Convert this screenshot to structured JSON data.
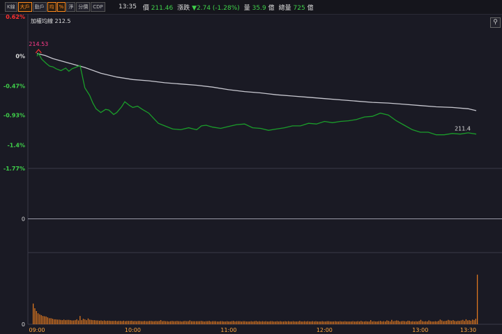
{
  "toolbar": {
    "tabs": [
      {
        "label": "K線",
        "active": false
      },
      {
        "label": "大戶",
        "active": true
      },
      {
        "label": "動戶",
        "active": false
      },
      {
        "label": "均",
        "active": true
      },
      {
        "label": "%",
        "active": true
      },
      {
        "label": "淨",
        "active": false
      },
      {
        "label": "分價",
        "active": false
      },
      {
        "label": "CDP",
        "active": false
      }
    ]
  },
  "quote": {
    "time": "13:35",
    "price_label": "價",
    "price": "211.46",
    "change_label": "漲跌",
    "change": "▼2.74 (-1.28%)",
    "vol_label": "量",
    "vol": "35.9",
    "vol_unit": "億",
    "total_label": "總量",
    "total": "725",
    "total_unit": "億"
  },
  "icons": {
    "link": "link-icon"
  },
  "colors": {
    "background": "#1a1a24",
    "price_line": "#1a9d2a",
    "avg_line": "#c8c8d0",
    "volume": "#e07820",
    "up": "#ff3030",
    "down": "#3fd14a",
    "high_marker": "#ff3c8a"
  },
  "chart_data": [
    {
      "type": "line",
      "avg_label": "加權均線 212.5",
      "yticks": [
        "0.62%",
        "0%",
        "-0.47%",
        "-0.93%",
        "-1.4%",
        "-1.77%"
      ],
      "ytick_values": [
        0.62,
        0,
        -0.47,
        -0.93,
        -1.4,
        -1.77
      ],
      "ylim": [
        -1.77,
        0.62
      ],
      "xlim": [
        0,
        280
      ],
      "xticks": [
        "09:00",
        "10:00",
        "11:00",
        "12:00",
        "13:00",
        "13:30"
      ],
      "xtick_values": [
        0,
        60,
        120,
        180,
        240,
        270
      ],
      "high_label": "214.53",
      "high_x": 1,
      "high_y": 0.07,
      "last_label": "211.4",
      "last_x": 270,
      "series": [
        {
          "role": "price",
          "values_x": [
            0,
            1,
            3,
            6,
            8,
            10,
            12,
            15,
            18,
            20,
            22,
            24,
            27,
            30,
            33,
            35,
            37,
            40,
            43,
            45,
            48,
            50,
            53,
            55,
            58,
            60,
            63,
            66,
            70,
            73,
            76,
            80,
            85,
            90,
            95,
            98,
            100,
            103,
            106,
            110,
            115,
            120,
            125,
            130,
            135,
            140,
            145,
            150,
            155,
            160,
            165,
            170,
            175,
            180,
            185,
            190,
            195,
            200,
            205,
            210,
            215,
            220,
            225,
            230,
            235,
            240,
            245,
            250,
            255,
            260,
            265,
            270,
            275
          ],
          "values_y": [
            0,
            0.04,
            -0.05,
            -0.12,
            -0.16,
            -0.17,
            -0.2,
            -0.23,
            -0.19,
            -0.24,
            -0.2,
            -0.18,
            -0.15,
            -0.5,
            -0.62,
            -0.74,
            -0.83,
            -0.89,
            -0.84,
            -0.85,
            -0.92,
            -0.89,
            -0.8,
            -0.72,
            -0.78,
            -0.81,
            -0.79,
            -0.84,
            -0.9,
            -0.98,
            -1.06,
            -1.1,
            -1.15,
            -1.16,
            -1.13,
            -1.15,
            -1.16,
            -1.1,
            -1.09,
            -1.12,
            -1.14,
            -1.11,
            -1.08,
            -1.07,
            -1.13,
            -1.14,
            -1.17,
            -1.15,
            -1.13,
            -1.1,
            -1.1,
            -1.06,
            -1.07,
            -1.03,
            -1.05,
            -1.03,
            -1.02,
            -1.0,
            -0.96,
            -0.95,
            -0.9,
            -0.93,
            -1.02,
            -1.09,
            -1.16,
            -1.2,
            -1.2,
            -1.24,
            -1.24,
            -1.22,
            -1.23,
            -1.21,
            -1.23
          ]
        },
        {
          "role": "avg",
          "values_x": [
            0,
            5,
            10,
            20,
            30,
            40,
            50,
            60,
            70,
            80,
            90,
            100,
            110,
            120,
            130,
            140,
            150,
            160,
            170,
            180,
            190,
            200,
            210,
            220,
            230,
            240,
            250,
            260,
            270,
            275
          ],
          "values_y": [
            0.04,
            0.01,
            -0.04,
            -0.11,
            -0.18,
            -0.27,
            -0.33,
            -0.37,
            -0.39,
            -0.42,
            -0.44,
            -0.46,
            -0.49,
            -0.53,
            -0.56,
            -0.58,
            -0.61,
            -0.63,
            -0.65,
            -0.67,
            -0.69,
            -0.71,
            -0.73,
            -0.74,
            -0.76,
            -0.78,
            -0.8,
            -0.81,
            -0.83,
            -0.86
          ]
        }
      ]
    },
    {
      "type": "line",
      "ytick": "0",
      "ylim": [
        -1,
        1
      ],
      "values_x": [],
      "values_y": []
    },
    {
      "type": "bar",
      "ytick": "0",
      "ylim": [
        0,
        250
      ],
      "values": [
        75,
        58,
        48,
        40,
        36,
        33,
        30,
        29,
        28,
        25,
        22,
        22,
        20,
        18,
        18,
        17,
        17,
        16,
        15,
        17,
        15,
        16,
        16,
        15,
        14,
        14,
        15,
        18,
        14,
        30,
        15,
        20,
        18,
        15,
        21,
        17,
        16,
        15,
        15,
        14,
        14,
        13,
        14,
        12,
        14,
        12,
        13,
        13,
        12,
        12,
        12,
        13,
        11,
        12,
        12,
        11,
        13,
        11,
        12,
        12,
        12,
        13,
        11,
        12,
        11,
        12,
        12,
        11,
        11,
        12,
        11,
        11,
        12,
        12,
        11,
        11,
        12,
        11,
        12,
        15,
        11,
        12,
        11,
        11,
        10,
        11,
        12,
        11,
        11,
        12,
        11,
        11,
        10,
        11,
        12,
        11,
        11,
        14,
        11,
        11,
        11,
        11,
        11,
        11,
        12,
        11,
        10,
        11,
        11,
        12,
        10,
        11,
        11,
        11,
        10,
        10,
        11,
        11,
        10,
        10,
        11,
        10,
        10,
        11,
        12,
        10,
        11,
        11,
        11,
        10,
        11,
        11,
        10,
        10,
        10,
        11,
        10,
        11,
        12,
        10,
        11,
        10,
        11,
        10,
        11,
        10,
        10,
        11,
        11,
        10,
        10,
        11,
        10,
        11,
        10,
        10,
        11,
        10,
        11,
        10,
        10,
        11,
        10,
        10,
        10,
        12,
        10,
        10,
        11,
        10,
        11,
        10,
        10,
        11,
        10,
        11,
        10,
        10,
        10,
        11,
        10,
        10,
        11,
        11,
        10,
        10,
        10,
        11,
        10,
        10,
        11,
        10,
        10,
        11,
        10,
        10,
        10,
        10,
        11,
        10,
        10,
        11,
        10,
        12,
        10,
        10,
        11,
        10,
        10,
        15,
        10,
        11,
        10,
        10,
        11,
        12,
        10,
        11,
        10,
        14,
        12,
        10,
        16,
        11,
        12,
        14,
        13,
        10,
        11,
        12,
        11,
        10,
        13,
        12,
        10,
        11,
        10,
        11,
        10,
        12,
        16,
        11,
        10,
        11,
        10,
        14,
        11,
        10,
        10,
        11,
        10,
        12,
        17,
        14,
        11,
        12,
        13,
        16,
        14,
        13,
        15,
        12,
        11,
        13,
        12,
        14,
        16,
        12,
        18,
        14,
        15,
        13,
        17,
        15,
        20,
        180
      ]
    }
  ]
}
